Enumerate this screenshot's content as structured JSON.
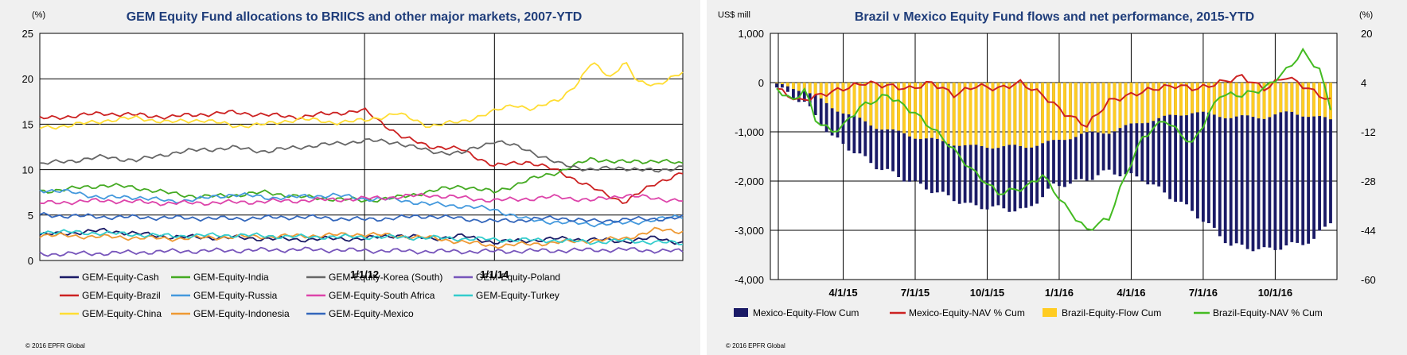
{
  "left_chart": {
    "title": "GEM Equity Fund allocations to BRIICS and other major markets, 2007-YTD",
    "unit": "(%)",
    "copyright": "© 2016 EPFR Global"
  },
  "right_chart": {
    "title": "Brazil v Mexico Equity Fund flows and net performance, 2015-YTD",
    "unit_left": "US$ mill",
    "unit_right": "(%)",
    "copyright": "© 2016 EPFR Global"
  },
  "chart_data": [
    {
      "type": "line",
      "title": "GEM Equity Fund allocations to BRIICS and other major markets, 2007-YTD",
      "ylabel": "(%)",
      "ylim": [
        0,
        25
      ],
      "yticks": [
        0,
        5,
        10,
        15,
        20,
        25
      ],
      "xrange": [
        2007.0,
        2016.9
      ],
      "xticks": [
        {
          "label": "1/1/12",
          "value": 2012.0
        },
        {
          "label": "1/1/14",
          "value": 2014.0
        }
      ],
      "grid": true,
      "legend_position": "bottom",
      "series": [
        {
          "name": "GEM-Equity-Cash",
          "color": "#1a1a66",
          "x": [
            2007.0,
            2008.0,
            2009.0,
            2010.0,
            2011.0,
            2011.5,
            2012.0,
            2012.5,
            2013.0,
            2013.5,
            2014.0,
            2014.5,
            2015.0,
            2015.5,
            2016.0,
            2016.5,
            2016.9
          ],
          "values": [
            2.8,
            3.3,
            2.6,
            2.5,
            2.3,
            2.4,
            2.4,
            2.8,
            2.4,
            2.7,
            2.0,
            2.2,
            2.4,
            2.3,
            2.1,
            2.5,
            1.9
          ]
        },
        {
          "name": "GEM-Equity-Brazil",
          "color": "#cc2222",
          "x": [
            2007.0,
            2007.5,
            2008.0,
            2008.5,
            2009.0,
            2009.5,
            2010.0,
            2010.5,
            2011.0,
            2011.5,
            2012.0,
            2012.3,
            2012.6,
            2013.0,
            2013.5,
            2014.0,
            2014.5,
            2015.0,
            2015.5,
            2016.0,
            2016.5,
            2016.9
          ],
          "values": [
            15.6,
            15.9,
            16.2,
            16.0,
            15.8,
            16.1,
            16.3,
            16.0,
            15.8,
            16.2,
            16.5,
            15.0,
            13.5,
            12.6,
            12.2,
            10.4,
            10.9,
            9.8,
            8.0,
            6.4,
            8.6,
            9.6
          ]
        },
        {
          "name": "GEM-Equity-China",
          "color": "#ffdd33",
          "x": [
            2007.0,
            2007.5,
            2008.0,
            2008.5,
            2009.0,
            2009.5,
            2010.0,
            2010.5,
            2011.0,
            2011.5,
            2012.0,
            2012.5,
            2013.0,
            2013.5,
            2014.0,
            2014.3,
            2014.6,
            2015.0,
            2015.3,
            2015.5,
            2015.8,
            2016.0,
            2016.2,
            2016.5,
            2016.9
          ],
          "values": [
            14.6,
            14.9,
            15.4,
            15.7,
            15.2,
            15.5,
            14.8,
            15.0,
            15.6,
            15.2,
            15.4,
            16.2,
            14.8,
            15.3,
            16.4,
            17.2,
            16.6,
            17.8,
            19.6,
            21.8,
            20.2,
            21.9,
            19.6,
            19.4,
            20.6
          ]
        },
        {
          "name": "GEM-Equity-India",
          "color": "#44aa22",
          "x": [
            2007.0,
            2007.5,
            2008.0,
            2008.5,
            2009.0,
            2009.5,
            2010.0,
            2010.5,
            2011.0,
            2011.5,
            2012.0,
            2012.5,
            2013.0,
            2013.5,
            2014.0,
            2014.5,
            2015.0,
            2015.5,
            2016.0,
            2016.5,
            2016.9
          ],
          "values": [
            7.6,
            7.9,
            8.3,
            8.0,
            7.4,
            7.0,
            7.2,
            7.5,
            7.0,
            6.8,
            6.6,
            6.9,
            7.6,
            8.2,
            7.5,
            8.8,
            9.8,
            11.2,
            10.8,
            11.0,
            10.6
          ]
        },
        {
          "name": "GEM-Equity-Russia",
          "color": "#4499dd",
          "x": [
            2007.0,
            2007.5,
            2008.0,
            2008.5,
            2009.0,
            2009.5,
            2010.0,
            2010.5,
            2011.0,
            2011.5,
            2012.0,
            2012.5,
            2013.0,
            2013.5,
            2014.0,
            2014.5,
            2015.0,
            2015.5,
            2016.0,
            2016.5,
            2016.9
          ],
          "values": [
            7.8,
            7.5,
            6.9,
            7.0,
            6.5,
            6.8,
            7.3,
            6.9,
            7.0,
            7.2,
            6.8,
            6.7,
            6.2,
            6.0,
            5.6,
            4.5,
            4.2,
            4.0,
            4.1,
            4.5,
            4.9
          ]
        },
        {
          "name": "GEM-Equity-Indonesia",
          "color": "#ee9933",
          "x": [
            2007.0,
            2008.0,
            2009.0,
            2010.0,
            2011.0,
            2012.0,
            2013.0,
            2014.0,
            2015.0,
            2015.5,
            2016.0,
            2016.5,
            2016.9
          ],
          "values": [
            2.8,
            2.6,
            2.4,
            2.6,
            2.7,
            2.9,
            2.5,
            1.6,
            2.0,
            2.2,
            2.4,
            3.4,
            3.2
          ]
        },
        {
          "name": "GEM-Equity-Korea (South)",
          "color": "#666666",
          "x": [
            2007.0,
            2007.5,
            2008.0,
            2008.5,
            2009.0,
            2009.5,
            2010.0,
            2010.5,
            2011.0,
            2011.5,
            2012.0,
            2012.5,
            2013.0,
            2013.5,
            2014.0,
            2014.5,
            2015.0,
            2015.5,
            2016.0,
            2016.5,
            2016.9
          ],
          "values": [
            10.6,
            11.0,
            11.4,
            11.0,
            11.8,
            12.2,
            12.4,
            12.0,
            12.5,
            12.8,
            13.2,
            13.0,
            12.0,
            11.8,
            13.2,
            12.2,
            10.6,
            10.0,
            10.2,
            9.8,
            10.4
          ]
        },
        {
          "name": "GEM-Equity-South Africa",
          "color": "#dd44aa",
          "x": [
            2007.0,
            2008.0,
            2009.0,
            2010.0,
            2011.0,
            2012.0,
            2013.0,
            2014.0,
            2015.0,
            2015.5,
            2016.0,
            2016.5,
            2016.9
          ],
          "values": [
            6.3,
            6.6,
            6.3,
            6.4,
            6.6,
            6.8,
            7.2,
            6.6,
            7.0,
            6.6,
            7.2,
            6.8,
            6.6
          ]
        },
        {
          "name": "GEM-Equity-Mexico",
          "color": "#3366bb",
          "x": [
            2007.0,
            2008.0,
            2009.0,
            2010.0,
            2011.0,
            2012.0,
            2013.0,
            2014.0,
            2015.0,
            2015.5,
            2016.0,
            2016.5,
            2016.9
          ],
          "values": [
            5.0,
            4.8,
            4.7,
            4.6,
            4.8,
            4.5,
            4.9,
            4.3,
            4.7,
            4.3,
            4.5,
            4.6,
            4.7
          ]
        },
        {
          "name": "GEM-Equity-Poland",
          "color": "#7755bb",
          "x": [
            2007.0,
            2008.0,
            2009.0,
            2010.0,
            2011.0,
            2012.0,
            2013.0,
            2014.0,
            2015.0,
            2016.0,
            2016.9
          ],
          "values": [
            0.7,
            0.8,
            1.0,
            1.1,
            1.2,
            1.1,
            1.0,
            1.0,
            1.1,
            1.2,
            1.0
          ]
        },
        {
          "name": "GEM-Equity-Turkey",
          "color": "#33cccc",
          "x": [
            2007.0,
            2008.0,
            2009.0,
            2010.0,
            2011.0,
            2012.0,
            2013.0,
            2014.0,
            2015.0,
            2015.5,
            2016.0,
            2016.5,
            2016.9
          ],
          "values": [
            3.2,
            3.0,
            2.7,
            2.8,
            2.6,
            2.6,
            2.5,
            2.3,
            2.2,
            2.0,
            2.2,
            2.0,
            1.9
          ]
        }
      ],
      "legend_order": [
        "GEM-Equity-Cash",
        "GEM-Equity-India",
        "GEM-Equity-Korea (South)",
        "GEM-Equity-Poland",
        "GEM-Equity-Brazil",
        "GEM-Equity-Russia",
        "GEM-Equity-South Africa",
        "GEM-Equity-Turkey",
        "GEM-Equity-China",
        "GEM-Equity-Indonesia",
        "GEM-Equity-Mexico"
      ]
    },
    {
      "type": "bar",
      "title": "Brazil v Mexico Equity Fund flows and net performance, 2015-YTD",
      "ylabel": "US$ mill",
      "ylim": [
        -4000,
        1000
      ],
      "yticks": [
        -4000,
        -3000,
        -2000,
        -1000,
        0,
        1000
      ],
      "y2label": "(%)",
      "y2lim": [
        -60,
        20
      ],
      "y2ticks": [
        -60,
        -44,
        -28,
        -12,
        4,
        20
      ],
      "xticks": [
        "4/1/15",
        "7/1/15",
        "10/1/15",
        "1/1/16",
        "4/1/16",
        "7/1/16",
        "10/1/16"
      ],
      "xtick_weeks": [
        12,
        25,
        38,
        51,
        64,
        77,
        90
      ],
      "weeks": 101,
      "grid": true,
      "legend_position": "bottom",
      "series": [
        {
          "name": "Mexico-Equity-Flow Cum",
          "kind": "bar",
          "axis": "left",
          "color": "#1a1a66",
          "x": [
            0,
            5,
            10,
            18,
            25,
            35,
            45,
            50,
            55,
            60,
            66,
            75,
            82,
            88,
            93,
            97,
            100
          ],
          "values": [
            -100,
            -400,
            -1100,
            -1700,
            -2050,
            -2500,
            -2600,
            -2100,
            -2000,
            -1800,
            -1950,
            -2600,
            -3300,
            -3400,
            -3300,
            -3200,
            -2800
          ]
        },
        {
          "name": "Mexico-Equity-NAV % Cum",
          "kind": "line",
          "axis": "right",
          "color": "#cc2222",
          "x": [
            0,
            4,
            8,
            12,
            16,
            20,
            24,
            28,
            32,
            36,
            40,
            44,
            48,
            52,
            56,
            60,
            64,
            68,
            72,
            76,
            80,
            84,
            88,
            90,
            92,
            96,
            100
          ],
          "values": [
            2,
            -2,
            0,
            2,
            4,
            3,
            2,
            4,
            0,
            3,
            2,
            4,
            0,
            -6,
            -10,
            -2,
            0,
            2,
            3,
            2,
            4,
            6,
            2,
            4,
            6,
            2,
            -2
          ]
        },
        {
          "name": "Brazil-Equity-Flow Cum",
          "kind": "bar",
          "axis": "left",
          "color": "#ffcc22",
          "x": [
            0,
            5,
            10,
            18,
            25,
            35,
            45,
            50,
            55,
            60,
            66,
            75,
            82,
            88,
            93,
            97,
            100
          ],
          "values": [
            -50,
            -150,
            -500,
            -900,
            -1100,
            -1300,
            -1300,
            -1200,
            -1050,
            -1000,
            -800,
            -600,
            -700,
            -700,
            -600,
            -700,
            -750
          ]
        },
        {
          "name": "Brazil-Equity-NAV % Cum",
          "kind": "line",
          "axis": "right",
          "color": "#44bb22",
          "x": [
            0,
            3,
            5,
            7,
            10,
            12,
            15,
            20,
            25,
            30,
            35,
            40,
            45,
            48,
            52,
            56,
            60,
            63,
            66,
            70,
            75,
            80,
            84,
            88,
            92,
            95,
            98,
            100
          ],
          "values": [
            2,
            -2,
            2,
            -8,
            -12,
            -10,
            -4,
            0,
            -6,
            -14,
            -24,
            -32,
            -30,
            -26,
            -36,
            -44,
            -40,
            -26,
            -14,
            -8,
            -16,
            0,
            0,
            2,
            8,
            14,
            8,
            -4
          ]
        }
      ]
    }
  ]
}
